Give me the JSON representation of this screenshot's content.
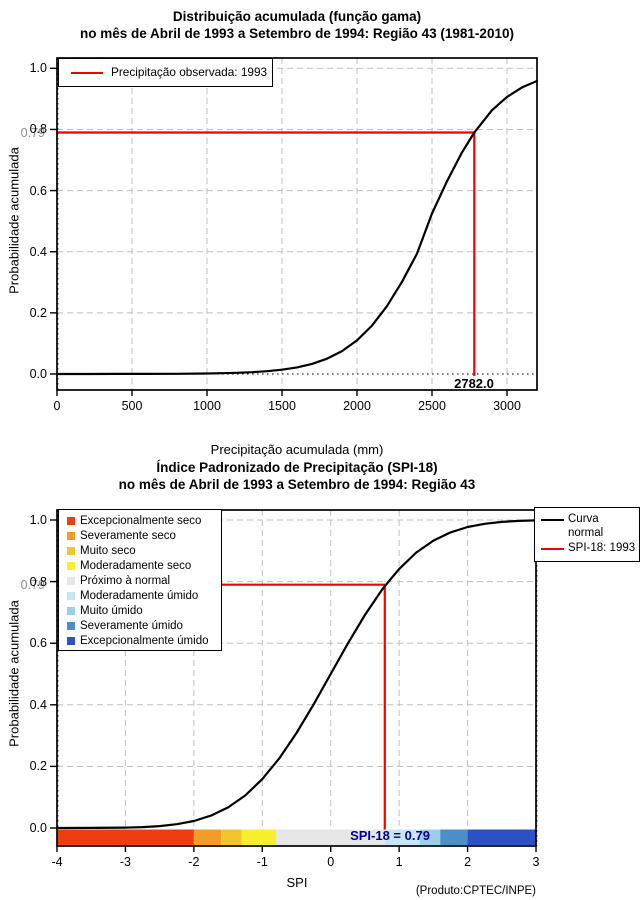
{
  "figure": {
    "background": "#ffffff",
    "accent_red": "#f40000",
    "grid_color": "#bfbfbf",
    "footer": "(Produto:CPTEC/INPE)"
  },
  "chart_data": [
    {
      "type": "line",
      "title": "Distribuição acumulada (função gama)",
      "subtitle": "no mês de Abril de 1993 a Setembro de 1994: Região 43 (1981-2010)",
      "xlabel": "Precipitação acumulada (mm)",
      "ylabel": "Probabilidade acumulada",
      "xlim": [
        0,
        3200
      ],
      "ylim": [
        0,
        1
      ],
      "x_ticks": [
        0,
        500,
        1000,
        1500,
        2000,
        2500,
        3000
      ],
      "y_ticks": [
        "0.0",
        "0.2",
        "0.4",
        "0.6",
        "0.8",
        "1.0"
      ],
      "grid": "dashed-gray-on",
      "legend_position": "top-left",
      "legend": [
        {
          "label": "Precipitação observada: 1993",
          "color": "#f40000"
        }
      ],
      "series": [
        {
          "name": "Distribuição acumulada (gama)",
          "color": "#000000",
          "points": [
            [
              0,
              0
            ],
            [
              200,
              0.0001
            ],
            [
              400,
              0.0002
            ],
            [
              600,
              0.0004
            ],
            [
              800,
              0.0008
            ],
            [
              1000,
              0.0016
            ],
            [
              1100,
              0.0025
            ],
            [
              1200,
              0.0038
            ],
            [
              1300,
              0.0059
            ],
            [
              1400,
              0.0091
            ],
            [
              1500,
              0.0141
            ],
            [
              1600,
              0.0217
            ],
            [
              1700,
              0.0331
            ],
            [
              1800,
              0.0501
            ],
            [
              1900,
              0.0749
            ],
            [
              2000,
              0.1099
            ],
            [
              2100,
              0.1583
            ],
            [
              2200,
              0.2221
            ],
            [
              2300,
              0.3016
            ],
            [
              2400,
              0.394
            ],
            [
              2500,
              0.525
            ],
            [
              2600,
              0.6306
            ],
            [
              2700,
              0.725
            ],
            [
              2782,
              0.79
            ],
            [
              2900,
              0.863
            ],
            [
              3000,
              0.9066
            ],
            [
              3100,
              0.9375
            ],
            [
              3200,
              0.9586
            ]
          ]
        }
      ],
      "marker": {
        "probability": 0.79,
        "probability_label": "0.79",
        "value": 2782.0,
        "value_label": "2782.0",
        "color": "#f40000"
      }
    },
    {
      "type": "line",
      "title": "Índice Padronizado de Precipitação (SPI-18)",
      "subtitle": "no mês de Abril de 1993 a Setembro de 1994: Região 43",
      "xlabel": "SPI",
      "ylabel": "Probabilidade acumulada",
      "xlim": [
        -4,
        3
      ],
      "ylim": [
        0,
        1
      ],
      "x_ticks": [
        -4,
        -3,
        -2,
        -1,
        0,
        1,
        2,
        3
      ],
      "y_ticks": [
        "0.0",
        "0.2",
        "0.4",
        "0.6",
        "0.8",
        "1.0"
      ],
      "grid": "dashed-gray-on",
      "categories_legend": [
        {
          "label": "Excepcionalmente seco",
          "color": "#ee3d12"
        },
        {
          "label": "Severamente seco",
          "color": "#f59b2a"
        },
        {
          "label": "Muito seco",
          "color": "#f2c52e"
        },
        {
          "label": "Moderadamente seco",
          "color": "#f7ef2e"
        },
        {
          "label": "Próximo à normal",
          "color": "#e6e6e6"
        },
        {
          "label": "Moderadamente úmido",
          "color": "#c9e5f3"
        },
        {
          "label": "Muito úmido",
          "color": "#9ccee8"
        },
        {
          "label": "Severamente úmido",
          "color": "#4c8fc7"
        },
        {
          "label": "Excepcionalmente úmido",
          "color": "#2b51c4"
        }
      ],
      "right_legend": [
        {
          "label": "Curva normal",
          "label_lines": [
            "Curva",
            "normal"
          ],
          "color": "#000000"
        },
        {
          "label": "SPI-18: 1993",
          "label_lines": [
            "SPI-18: 1993"
          ],
          "color": "#f40000"
        }
      ],
      "series": [
        {
          "name": "Curva normal",
          "color": "#000000",
          "points": [
            [
              -4,
              0.0001
            ],
            [
              -3.5,
              0.0002
            ],
            [
              -3,
              0.0013
            ],
            [
              -2.75,
              0.003
            ],
            [
              -2.5,
              0.0062
            ],
            [
              -2.25,
              0.0122
            ],
            [
              -2,
              0.0228
            ],
            [
              -1.75,
              0.0401
            ],
            [
              -1.5,
              0.0668
            ],
            [
              -1.25,
              0.1056
            ],
            [
              -1,
              0.1587
            ],
            [
              -0.75,
              0.2266
            ],
            [
              -0.5,
              0.3085
            ],
            [
              -0.25,
              0.4013
            ],
            [
              0,
              0.5
            ],
            [
              0.25,
              0.5987
            ],
            [
              0.5,
              0.6915
            ],
            [
              0.75,
              0.7734
            ],
            [
              0.79,
              0.7852
            ],
            [
              1,
              0.8413
            ],
            [
              1.25,
              0.8944
            ],
            [
              1.5,
              0.9332
            ],
            [
              1.75,
              0.9599
            ],
            [
              2,
              0.9772
            ],
            [
              2.25,
              0.9878
            ],
            [
              2.5,
              0.9938
            ],
            [
              2.75,
              0.997
            ],
            [
              3,
              0.9987
            ]
          ]
        }
      ],
      "marker": {
        "probability": 0.79,
        "probability_label": "0.79",
        "spi": 0.79,
        "bar_label": "SPI-18 = 0.79",
        "bar_label_color": "#00008b",
        "color": "#f40000"
      },
      "colorbar": [
        {
          "from": -4,
          "to": -2,
          "color": "#ee3d12",
          "category": "Excepcionalmente seco"
        },
        {
          "from": -2,
          "to": -1.6,
          "color": "#f59b2a",
          "category": "Severamente seco"
        },
        {
          "from": -1.6,
          "to": -1.3,
          "color": "#f2c52e",
          "category": "Muito seco"
        },
        {
          "from": -1.3,
          "to": -0.8,
          "color": "#f7ef2e",
          "category": "Moderadamente seco"
        },
        {
          "from": -0.8,
          "to": 0.8,
          "color": "#e6e6e6",
          "category": "Próximo à normal"
        },
        {
          "from": 0.8,
          "to": 1.3,
          "color": "#c9e5f3",
          "category": "Moderadamente úmido"
        },
        {
          "from": 1.3,
          "to": 1.6,
          "color": "#9ccee8",
          "category": "Muito úmido"
        },
        {
          "from": 1.6,
          "to": 2,
          "color": "#4c8fc7",
          "category": "Severamente úmido"
        },
        {
          "from": 2,
          "to": 3,
          "color": "#2b51c4",
          "category": "Excepcionalmente úmido"
        }
      ],
      "footer": "(Produto:CPTEC/INPE)"
    }
  ]
}
